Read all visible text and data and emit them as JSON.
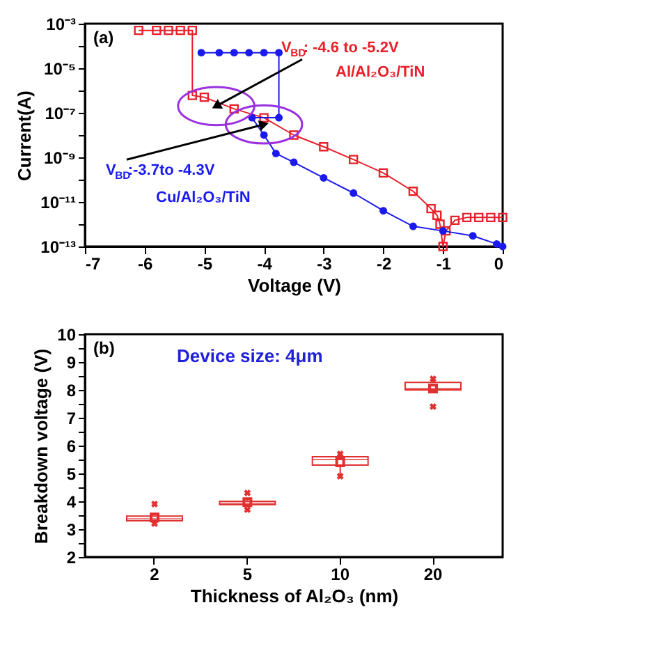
{
  "chart_data": [
    {
      "type": "line",
      "xlabel": "Voltage (V)",
      "ylabel": "Current(A)",
      "log": "y",
      "grid": false,
      "xlim": [
        -7,
        0
      ],
      "xticks": [
        -7,
        -6,
        -5,
        -4,
        -3,
        -2,
        -1,
        0
      ],
      "ylim": [
        1e-13,
        0.001
      ],
      "yticks": [
        {
          "value": 1e-13,
          "label": "10⁻¹³"
        },
        {
          "value": 1e-12,
          "label": null
        },
        {
          "value": 1e-11,
          "label": "10⁻¹¹"
        },
        {
          "value": 1e-10,
          "label": null
        },
        {
          "value": 1e-09,
          "label": "10⁻⁹"
        },
        {
          "value": 1e-08,
          "label": null
        },
        {
          "value": 1e-07,
          "label": "10⁻⁷"
        },
        {
          "value": 1e-06,
          "label": null
        },
        {
          "value": 1e-05,
          "label": "10⁻⁵"
        },
        {
          "value": 0.0001,
          "label": null
        },
        {
          "value": 0.001,
          "label": "10⁻³"
        }
      ],
      "annotations": [
        "(a)",
        {
          "text": "V$_{BD}$: -4.6 to -5.2V",
          "x": -4.8,
          "y": 2e-07
        },
        {
          "text": "V$_{BD}$:-3.7to -4.3V",
          "x": -4.0,
          "y": 3e-08
        }
      ],
      "series": [
        {
          "name": "Al/Al₂O₃/TiN",
          "color": "#e8202a",
          "marker": "square",
          "x": [
            0,
            -0.2,
            -0.4,
            -0.6,
            -0.8,
            -0.95,
            -1.0,
            -1.05,
            -1.1,
            -1.2,
            -1.5,
            -2.0,
            -2.5,
            -3.0,
            -3.5,
            -4.0,
            -4.5,
            -5.0,
            -5.2,
            -5.2,
            -5.4,
            -5.6,
            -5.8,
            -6.1
          ],
          "values": [
            2e-12,
            2e-12,
            2e-12,
            2e-12,
            1.5e-12,
            5e-13,
            1e-13,
            1e-12,
            2.5e-12,
            5e-12,
            3e-11,
            2e-10,
            8e-10,
            3e-09,
            1e-08,
            6e-08,
            1.5e-07,
            5e-07,
            6e-07,
            0.0005,
            0.0005,
            0.0005,
            0.0005,
            0.0005
          ]
        },
        {
          "name": "Cu/Al₂O₃/TiN",
          "color": "#1a1aee",
          "marker": "circle",
          "x": [
            0,
            -0.1,
            -0.5,
            -1.0,
            -1.5,
            -2.0,
            -2.5,
            -3.0,
            -3.5,
            -3.8,
            -4.0,
            -4.2,
            -3.75,
            -3.75,
            -4.0,
            -4.25,
            -4.5,
            -4.75,
            -5.05
          ],
          "values": [
            1e-13,
            1.3e-13,
            3e-13,
            5e-13,
            8e-13,
            4e-12,
            2.5e-11,
            1.2e-10,
            6e-10,
            1.5e-09,
            1e-08,
            6e-08,
            6e-08,
            5e-05,
            5e-05,
            5e-05,
            5e-05,
            5e-05,
            5e-05
          ]
        }
      ]
    },
    {
      "type": "box",
      "xlabel": "Thickness of Al₂O₃ (nm)",
      "ylabel": "Breakdown voltage (V)",
      "grid": false,
      "categories": [
        "2",
        "5",
        "10",
        "20"
      ],
      "ylim": [
        2,
        10
      ],
      "yticks": [
        2,
        {
          "value": 2.5,
          "label": null
        },
        3,
        {
          "value": 3.5,
          "label": null
        },
        4,
        {
          "value": 4.5,
          "label": null
        },
        5,
        {
          "value": 5.5,
          "label": null
        },
        6,
        {
          "value": 6.5,
          "label": null
        },
        7,
        {
          "value": 7.5,
          "label": null
        },
        8,
        {
          "value": 8.5,
          "label": null
        },
        9,
        {
          "value": 9.5,
          "label": null
        },
        10
      ],
      "annotations": [
        "(b)",
        "Device size: 4μm"
      ],
      "series": [
        {
          "color": "#e03030",
          "boxes": [
            {
              "low": 3.25,
              "q1": 3.3,
              "median": 3.37,
              "q3": 3.47,
              "high": 3.47,
              "mean": 3.42,
              "outliers": [
                3.9,
                3.2
              ]
            },
            {
              "low": 3.88,
              "q1": 3.88,
              "median": 3.93,
              "q3": 4.0,
              "high": 4.05,
              "mean": 3.97,
              "outliers": [
                4.3,
                3.7
              ]
            },
            {
              "low": 4.9,
              "q1": 5.3,
              "median": 5.5,
              "q3": 5.6,
              "high": 5.65,
              "mean": 5.4,
              "outliers": [
                5.7,
                4.9
              ]
            },
            {
              "low": 7.95,
              "q1": 8.0,
              "median": 8.05,
              "q3": 8.27,
              "high": 8.4,
              "mean": 8.05,
              "outliers": [
                8.4,
                7.4
              ]
            }
          ]
        }
      ]
    }
  ]
}
